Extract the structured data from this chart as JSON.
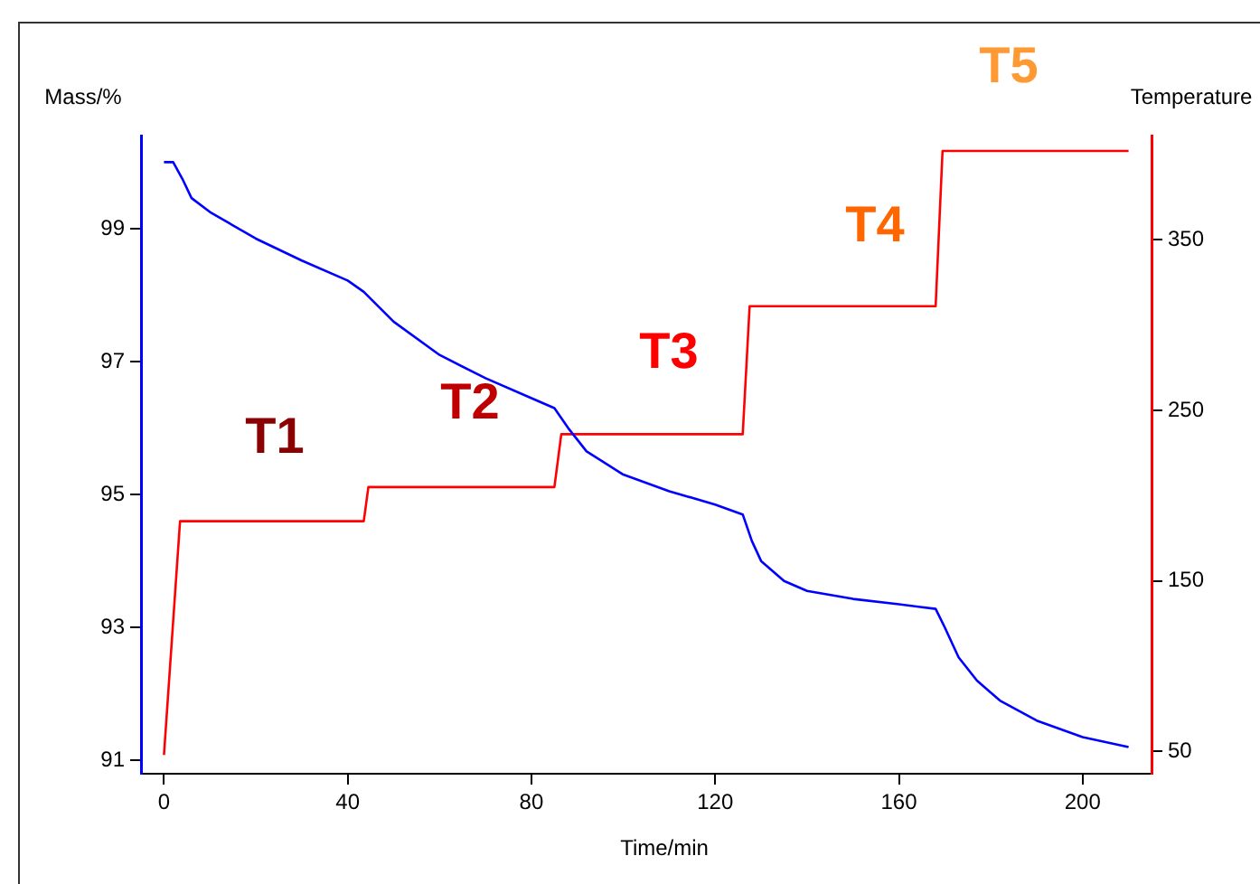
{
  "chart_data": {
    "type": "line",
    "xlabel": "Time/min",
    "ylabel": "Mass/%",
    "y2label": "Temperature",
    "xlim": [
      -5,
      215
    ],
    "xticks": [
      0,
      40,
      80,
      120,
      160,
      200
    ],
    "ylim": [
      90.8,
      100.4
    ],
    "yticks": [
      91,
      93,
      95,
      97,
      99
    ],
    "y2lim": [
      37,
      411
    ],
    "y2ticks": [
      50,
      150,
      250,
      350
    ],
    "grid": false,
    "legend": false,
    "marker": "none",
    "line_style": "solid",
    "series": [
      {
        "color": "#0000ff",
        "x": [
          0,
          2,
          4,
          6,
          10,
          20,
          30,
          40,
          43.5,
          50,
          60,
          70,
          80,
          85,
          88,
          92,
          100,
          110,
          120,
          126,
          128,
          130,
          135,
          140,
          150,
          160,
          168,
          170,
          173,
          177,
          182,
          190,
          200,
          210
        ],
        "values": [
          100.0,
          100.0,
          99.75,
          99.46,
          99.25,
          98.85,
          98.52,
          98.22,
          98.05,
          97.6,
          97.1,
          96.75,
          96.45,
          96.3,
          96.0,
          95.65,
          95.3,
          95.05,
          94.85,
          94.7,
          94.3,
          94.0,
          93.7,
          93.55,
          93.43,
          93.35,
          93.28,
          93.0,
          92.55,
          92.2,
          91.9,
          91.6,
          91.35,
          91.2
        ]
      },
      {
        "color": "#ff0000",
        "axis": "y2",
        "x": [
          0,
          3.5,
          43.5,
          44.5,
          85,
          86.5,
          126,
          127.5,
          168,
          169.5,
          210
        ],
        "values": [
          48,
          185,
          185,
          205,
          205,
          236,
          236,
          311,
          311,
          402,
          402
        ]
      }
    ],
    "annotations": [
      "T1",
      "T2",
      "T3",
      "T4",
      "T5"
    ]
  }
}
